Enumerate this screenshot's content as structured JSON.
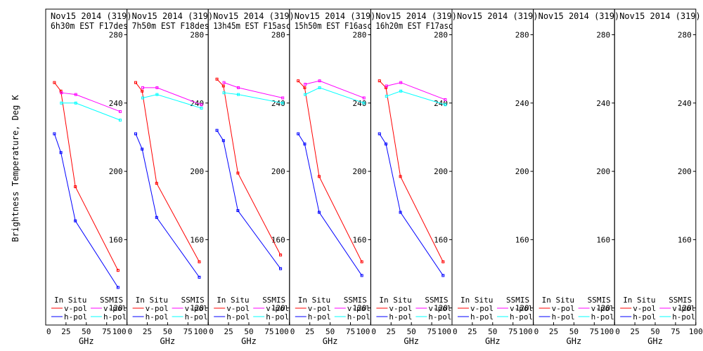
{
  "chart_data": {
    "type": "line",
    "ylabel": "Brightness Temperature, Deg K",
    "xlabel": "GHz",
    "ylim": [
      110,
      295
    ],
    "xlim": [
      0,
      100
    ],
    "yticks": [
      120,
      160,
      200,
      240,
      280
    ],
    "xticks": [
      0,
      25,
      50,
      75,
      100
    ],
    "legend": {
      "in_situ_title": "In Situ",
      "ssmis_title": "SSMIS",
      "v_pol": "v-pol",
      "h_pol": "h-pol"
    },
    "colors": {
      "insitu_v": "#ff0000",
      "insitu_h": "#0000ff",
      "ssmis_v": "#ff00ff",
      "ssmis_h": "#00ffff"
    },
    "panels": [
      {
        "title": "Nov15 2014 (319)",
        "subtitle": "6h30m  EST F17des",
        "series": [
          {
            "name": "In Situ v-pol",
            "x": [
              10.7,
              18.7,
              36.5,
              89
            ],
            "y": [
              252,
              247,
              191,
              142
            ]
          },
          {
            "name": "In Situ h-pol",
            "x": [
              10.7,
              18.7,
              36.5,
              89
            ],
            "y": [
              222,
              211,
              171,
              132
            ]
          },
          {
            "name": "SSMIS v-pol",
            "x": [
              19.35,
              37,
              91.655
            ],
            "y": [
              246,
              245,
              235
            ]
          },
          {
            "name": "SSMIS h-pol",
            "x": [
              19.35,
              37,
              91.655
            ],
            "y": [
              240,
              240,
              230
            ]
          }
        ]
      },
      {
        "title": "Nov15 2014 (319)",
        "subtitle": "7h50m  EST F18des",
        "series": [
          {
            "name": "In Situ v-pol",
            "x": [
              10.7,
              18.7,
              36.5,
              89
            ],
            "y": [
              252,
              247,
              193,
              147
            ]
          },
          {
            "name": "In Situ h-pol",
            "x": [
              10.7,
              18.7,
              36.5,
              89
            ],
            "y": [
              222,
              213,
              173,
              138
            ]
          },
          {
            "name": "SSMIS v-pol",
            "x": [
              19.35,
              37,
              91.655
            ],
            "y": [
              249,
              249,
              239
            ]
          },
          {
            "name": "SSMIS h-pol",
            "x": [
              19.35,
              37,
              91.655
            ],
            "y": [
              243,
              245,
              237
            ]
          }
        ]
      },
      {
        "title": "Nov15 2014 (319)",
        "subtitle": "13h45m  EST F15asc",
        "series": [
          {
            "name": "In Situ v-pol",
            "x": [
              10.7,
              18.7,
              36.5,
              89
            ],
            "y": [
              254,
              250,
              199,
              151
            ]
          },
          {
            "name": "In Situ h-pol",
            "x": [
              10.7,
              18.7,
              36.5,
              89
            ],
            "y": [
              224,
              218,
              177,
              143
            ]
          },
          {
            "name": "SSMIS v-pol",
            "x": [
              19.35,
              37,
              91.655
            ],
            "y": [
              252,
              249,
              243
            ]
          },
          {
            "name": "SSMIS h-pol",
            "x": [
              19.35,
              37,
              91.655
            ],
            "y": [
              246,
              245,
              240
            ]
          }
        ]
      },
      {
        "title": "Nov15 2014 (319)",
        "subtitle": "15h50m  EST F16asc",
        "series": [
          {
            "name": "In Situ v-pol",
            "x": [
              10.7,
              18.7,
              36.5,
              89
            ],
            "y": [
              253,
              249,
              197,
              147
            ]
          },
          {
            "name": "In Situ h-pol",
            "x": [
              10.7,
              18.7,
              36.5,
              89
            ],
            "y": [
              222,
              216,
              176,
              139
            ]
          },
          {
            "name": "SSMIS v-pol",
            "x": [
              19.35,
              37,
              91.655
            ],
            "y": [
              251,
              253,
              243
            ]
          },
          {
            "name": "SSMIS h-pol",
            "x": [
              19.35,
              37,
              91.655
            ],
            "y": [
              245,
              249,
              240
            ]
          }
        ]
      },
      {
        "title": "Nov15 2014 (319)",
        "subtitle": "16h20m  EST F17asc",
        "series": [
          {
            "name": "In Situ v-pol",
            "x": [
              10.7,
              18.7,
              36.5,
              89
            ],
            "y": [
              253,
              249,
              197,
              147
            ]
          },
          {
            "name": "In Situ h-pol",
            "x": [
              10.7,
              18.7,
              36.5,
              89
            ],
            "y": [
              222,
              216,
              176,
              139
            ]
          },
          {
            "name": "SSMIS v-pol",
            "x": [
              19.35,
              37,
              91.655
            ],
            "y": [
              250,
              252,
              242
            ]
          },
          {
            "name": "SSMIS h-pol",
            "x": [
              19.35,
              37,
              91.655
            ],
            "y": [
              244,
              247,
              239
            ]
          }
        ]
      },
      {
        "title": "Nov15 2014 (319)",
        "subtitle": "",
        "series": []
      },
      {
        "title": "Nov15 2014 (319)",
        "subtitle": "",
        "series": []
      },
      {
        "title": "Nov15 2014 (319)",
        "subtitle": "",
        "series": []
      }
    ]
  }
}
